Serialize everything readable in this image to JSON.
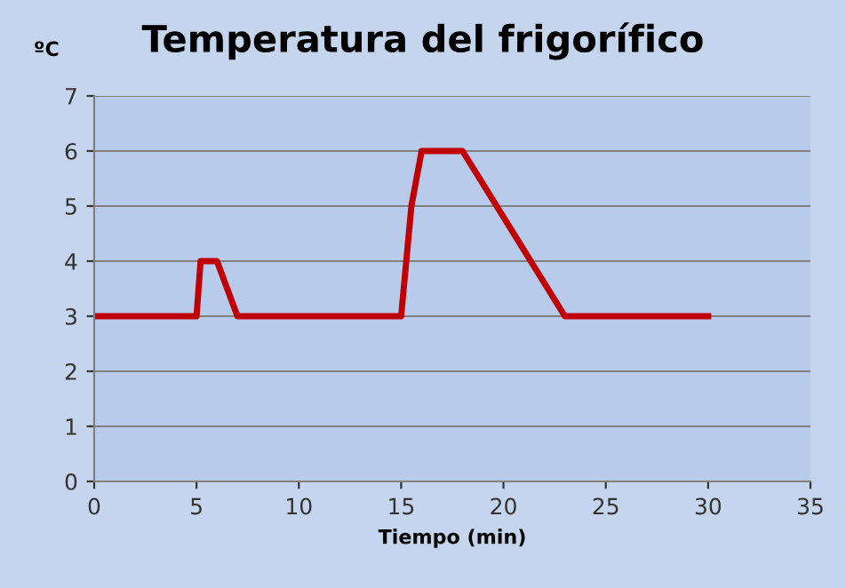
{
  "chart_data": {
    "type": "line",
    "title": "Temperatura del frigorífico",
    "ylabel": "ºC",
    "xlabel": "Tiempo (min)",
    "series": [
      {
        "color": "#c00000",
        "x": [
          0,
          5,
          5.2,
          6,
          7,
          15,
          15.5,
          16,
          18,
          23,
          30
        ],
        "values": [
          3,
          3,
          4,
          4,
          3,
          3,
          5,
          6,
          6,
          3,
          3
        ]
      }
    ],
    "xlim": [
      0,
      35
    ],
    "xticks": [
      0,
      5,
      10,
      15,
      20,
      25,
      30,
      35
    ],
    "ylim": [
      0,
      7
    ],
    "yticks": [
      0,
      1,
      2,
      3,
      4,
      5,
      6,
      7
    ],
    "grid": "y",
    "marker": "none",
    "line_style": "solid"
  }
}
